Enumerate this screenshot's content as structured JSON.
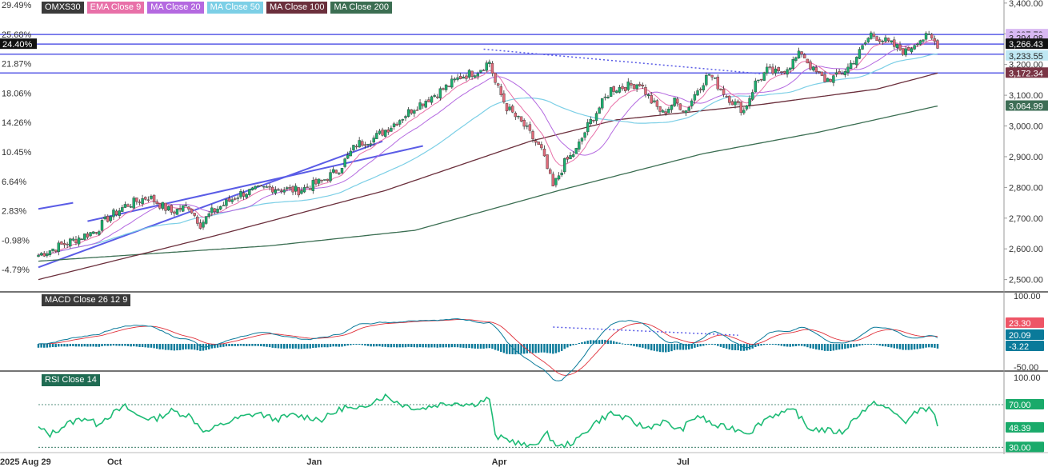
{
  "chart_data": [
    {
      "type": "candlestick",
      "title": "OMXS30",
      "legend": [
        {
          "label": "OMXS30",
          "color": "#3a3a3a"
        },
        {
          "label": "EMA Close 9",
          "color": "#e870a8"
        },
        {
          "label": "MA Close 20",
          "color": "#b469e0"
        },
        {
          "label": "MA Close 50",
          "color": "#7ccfe6"
        },
        {
          "label": "MA Close 100",
          "color": "#6b2f3c"
        },
        {
          "label": "MA Close 200",
          "color": "#3b6e52"
        }
      ],
      "x_ticks": [
        "2025 Aug 29",
        "Oct",
        "Jan",
        "Apr",
        "Jul"
      ],
      "y_ticks_price": [
        "3,400.00",
        "3,300.00",
        "3,200.00",
        "3,100.00",
        "3,000.00",
        "2,900.00",
        "2,800.00",
        "2,700.00",
        "2,600.00",
        "2,500.00"
      ],
      "y_ticks_percent": [
        "29.49%",
        "25.68%",
        "21.87%",
        "18.06%",
        "14.26%",
        "10.45%",
        "6.64%",
        "2.83%",
        "-0.98%",
        "-4.79%"
      ],
      "ylim": [
        2460,
        3410
      ],
      "percent_marker": "24.40%",
      "horizontal_lines": [
        3297.79,
        3266.43,
        3233.55,
        3172.34
      ],
      "price_tags": [
        {
          "label": "3,297.79",
          "bg": "#d8b8f2",
          "fg": "#222222"
        },
        {
          "label": "3,294.08",
          "bg": "#d8b8f2",
          "fg": "#222222"
        },
        {
          "label": "3,266.43",
          "bg": "#111111",
          "fg": "#ffffff"
        },
        {
          "label": "3,233.55",
          "bg": "#bfe8f3",
          "fg": "#222222"
        },
        {
          "label": "3,172.34",
          "bg": "#7a3444",
          "fg": "#ffffff"
        },
        {
          "label": "3,064.99",
          "bg": "#3e6e56",
          "fg": "#ffffff"
        }
      ],
      "close_keypoints": [
        [
          0,
          2580
        ],
        [
          10,
          2620
        ],
        [
          20,
          2660
        ],
        [
          24,
          2700
        ],
        [
          30,
          2740
        ],
        [
          38,
          2770
        ],
        [
          46,
          2720
        ],
        [
          52,
          2740
        ],
        [
          56,
          2680
        ],
        [
          60,
          2720
        ],
        [
          70,
          2780
        ],
        [
          80,
          2800
        ],
        [
          90,
          2790
        ],
        [
          98,
          2820
        ],
        [
          104,
          2860
        ],
        [
          110,
          2940
        ],
        [
          116,
          2960
        ],
        [
          122,
          3000
        ],
        [
          130,
          3060
        ],
        [
          140,
          3120
        ],
        [
          146,
          3160
        ],
        [
          152,
          3180
        ],
        [
          156,
          3210
        ],
        [
          158,
          3140
        ],
        [
          162,
          3060
        ],
        [
          168,
          3000
        ],
        [
          174,
          2920
        ],
        [
          178,
          2800
        ],
        [
          182,
          2880
        ],
        [
          186,
          2920
        ],
        [
          190,
          3000
        ],
        [
          194,
          3060
        ],
        [
          198,
          3120
        ],
        [
          204,
          3130
        ],
        [
          208,
          3140
        ],
        [
          212,
          3080
        ],
        [
          216,
          3040
        ],
        [
          220,
          3080
        ],
        [
          224,
          3050
        ],
        [
          228,
          3120
        ],
        [
          232,
          3170
        ],
        [
          236,
          3120
        ],
        [
          240,
          3080
        ],
        [
          244,
          3050
        ],
        [
          248,
          3140
        ],
        [
          252,
          3180
        ],
        [
          256,
          3170
        ],
        [
          260,
          3200
        ],
        [
          264,
          3240
        ],
        [
          268,
          3180
        ],
        [
          272,
          3150
        ],
        [
          276,
          3160
        ],
        [
          280,
          3190
        ],
        [
          284,
          3240
        ],
        [
          288,
          3300
        ],
        [
          292,
          3280
        ],
        [
          296,
          3260
        ],
        [
          300,
          3240
        ],
        [
          304,
          3280
        ],
        [
          308,
          3290
        ],
        [
          311,
          3266
        ]
      ],
      "ma200_keypoints": [
        [
          0,
          2560
        ],
        [
          80,
          2610
        ],
        [
          130,
          2660
        ],
        [
          180,
          2790
        ],
        [
          230,
          2910
        ],
        [
          270,
          2980
        ],
        [
          311,
          3065
        ]
      ],
      "ma100_keypoints": [
        [
          0,
          2500
        ],
        [
          60,
          2640
        ],
        [
          120,
          2790
        ],
        [
          170,
          2950
        ],
        [
          200,
          3020
        ],
        [
          250,
          3070
        ],
        [
          290,
          3120
        ],
        [
          311,
          3172
        ]
      ],
      "trendlines": [
        {
          "from": [
            0,
            2540
          ],
          "to": [
            119,
            2950
          ],
          "color": "#5a5ce6"
        },
        {
          "from": [
            17,
            2690
          ],
          "to": [
            133,
            2935
          ],
          "color": "#5a5ce6"
        },
        {
          "from": [
            0,
            2730
          ],
          "to": [
            12,
            2750
          ],
          "color": "#5a5ce6"
        },
        {
          "from": [
            154,
            3250
          ],
          "to": [
            250,
            3170
          ],
          "color": "#5a5ce6",
          "dashed": true
        }
      ]
    },
    {
      "type": "line",
      "title": "MACD  Close 26 12 9",
      "y_ticks": [
        "100.00",
        "-50.00"
      ],
      "ylim": [
        -50,
        100
      ],
      "values_tags": [
        {
          "label": "23.30",
          "bg": "#ee5566",
          "fg": "#ffffff"
        },
        {
          "label": "20.09",
          "bg": "#0a7a9a",
          "fg": "#ffffff"
        },
        {
          "label": "-3.22",
          "bg": "#0a7a9a",
          "fg": "#ffffff"
        }
      ]
    },
    {
      "type": "line",
      "title": "RSI  Close 14",
      "y_ticks": [
        "100.00",
        "70.00",
        "48.39",
        "30.00"
      ],
      "ylim": [
        25,
        100
      ],
      "levels": [
        70,
        30
      ],
      "values_tags": [
        {
          "label": "70.00",
          "bg": "#1aaa6a",
          "fg": "#ffffff"
        },
        {
          "label": "48.39",
          "bg": "#1aaa6a",
          "fg": "#ffffff"
        },
        {
          "label": "30.00",
          "bg": "#1aaa6a",
          "fg": "#ffffff"
        }
      ],
      "rsi_keypoints": [
        [
          0,
          48
        ],
        [
          4,
          42
        ],
        [
          10,
          52
        ],
        [
          16,
          58
        ],
        [
          20,
          52
        ],
        [
          26,
          62
        ],
        [
          30,
          68
        ],
        [
          34,
          60
        ],
        [
          40,
          56
        ],
        [
          46,
          64
        ],
        [
          52,
          60
        ],
        [
          58,
          44
        ],
        [
          64,
          52
        ],
        [
          70,
          58
        ],
        [
          76,
          62
        ],
        [
          82,
          56
        ],
        [
          88,
          60
        ],
        [
          94,
          58
        ],
        [
          98,
          56
        ],
        [
          102,
          62
        ],
        [
          106,
          68
        ],
        [
          110,
          64
        ],
        [
          116,
          74
        ],
        [
          120,
          78
        ],
        [
          126,
          70
        ],
        [
          132,
          66
        ],
        [
          138,
          70
        ],
        [
          144,
          72
        ],
        [
          150,
          70
        ],
        [
          156,
          76
        ],
        [
          158,
          40
        ],
        [
          164,
          36
        ],
        [
          170,
          30
        ],
        [
          176,
          42
        ],
        [
          180,
          30
        ],
        [
          186,
          36
        ],
        [
          192,
          52
        ],
        [
          198,
          62
        ],
        [
          204,
          56
        ],
        [
          210,
          48
        ],
        [
          216,
          54
        ],
        [
          222,
          46
        ],
        [
          228,
          60
        ],
        [
          234,
          50
        ],
        [
          240,
          48
        ],
        [
          246,
          44
        ],
        [
          252,
          58
        ],
        [
          256,
          62
        ],
        [
          262,
          64
        ],
        [
          266,
          48
        ],
        [
          272,
          46
        ],
        [
          278,
          44
        ],
        [
          284,
          62
        ],
        [
          290,
          72
        ],
        [
          296,
          62
        ],
        [
          300,
          54
        ],
        [
          306,
          68
        ],
        [
          310,
          62
        ],
        [
          311,
          48
        ]
      ]
    }
  ]
}
